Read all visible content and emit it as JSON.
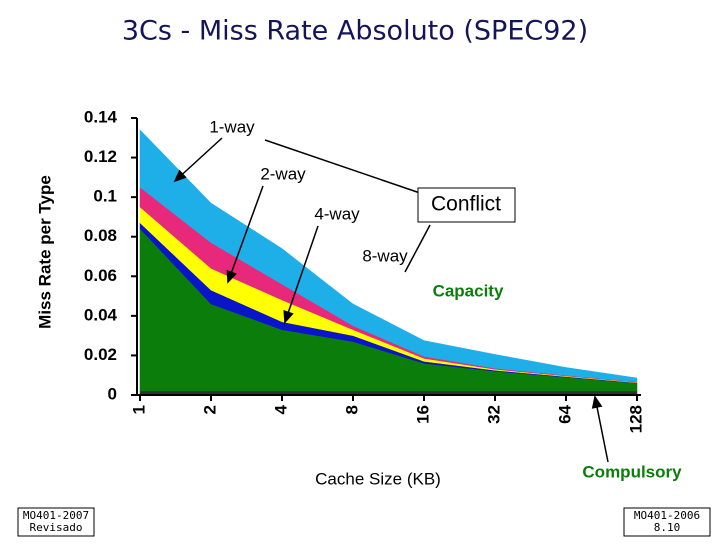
{
  "chart_data": {
    "type": "stacked_area",
    "title": "3Cs - Miss Rate Absoluto (SPEC92)",
    "x_label": "Cache Size (KB)",
    "y_label": "Miss Rate per Type",
    "categories": [
      "1",
      "2",
      "4",
      "8",
      "16",
      "32",
      "64",
      "128"
    ],
    "series": [
      {
        "name": "Compulsory",
        "color": "#303030",
        "values": [
          0.002,
          0.002,
          0.002,
          0.002,
          0.002,
          0.002,
          0.002,
          0.002
        ]
      },
      {
        "name": "Capacity",
        "color": "#0b7d0b",
        "values": [
          0.082,
          0.044,
          0.031,
          0.025,
          0.014,
          0.01,
          0.007,
          0.004
        ]
      },
      {
        "name": "8-way",
        "color": "#0a14c8",
        "values": [
          0.003,
          0.007,
          0.004,
          0.003,
          0.001,
          0.0005,
          0.0003,
          0.0002
        ]
      },
      {
        "name": "4-way",
        "color": "#ffff00",
        "values": [
          0.008,
          0.011,
          0.011,
          0.003,
          0.0015,
          0.0005,
          0.0003,
          0.0002
        ]
      },
      {
        "name": "2-way",
        "color": "#e8287a",
        "values": [
          0.01,
          0.013,
          0.008,
          0.002,
          0.001,
          0.0005,
          0.0003,
          0.0002
        ]
      },
      {
        "name": "1-way",
        "color": "#1eaee8",
        "values": [
          0.029,
          0.02,
          0.018,
          0.011,
          0.008,
          0.007,
          0.004,
          0.002
        ]
      }
    ],
    "conflict_label": "Conflict",
    "ylim": [
      0,
      0.14
    ],
    "yticks": [
      0,
      0.02,
      0.04,
      0.06,
      0.08,
      0.1,
      0.12,
      0.14
    ]
  },
  "footer_left": [
    "MO401-2007",
    "Revisado"
  ],
  "footer_right": [
    "MO401-2006",
    "8.10"
  ]
}
